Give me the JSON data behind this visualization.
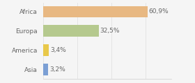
{
  "categories": [
    "Africa",
    "Europa",
    "America",
    "Asia"
  ],
  "values": [
    60.9,
    32.5,
    3.4,
    3.2
  ],
  "labels": [
    "60,9%",
    "32,5%",
    "3,4%",
    "3,2%"
  ],
  "bar_colors": [
    "#e8b882",
    "#b5c98e",
    "#e8c84a",
    "#7b9fd4"
  ],
  "background_color": "#f5f5f5",
  "xlim": [
    0,
    75
  ],
  "figsize": [
    2.8,
    1.2
  ],
  "dpi": 100
}
